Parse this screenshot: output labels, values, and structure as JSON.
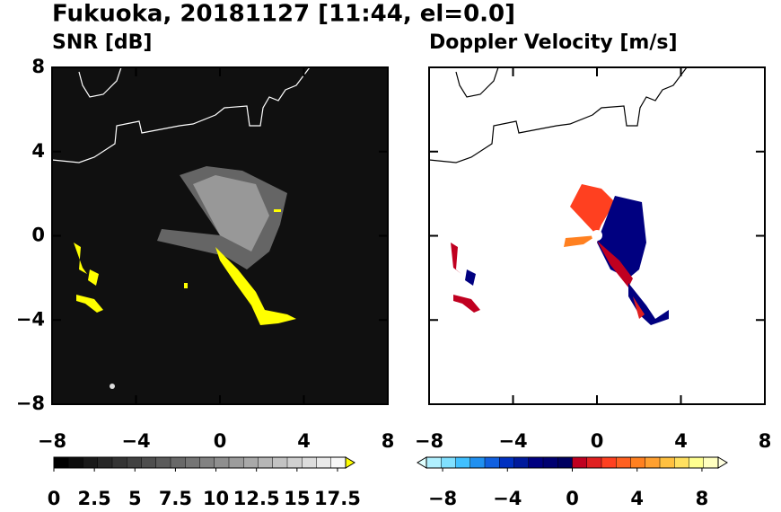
{
  "title": "Fukuoka, 20181127 [11:44, el=0.0]",
  "chart_data": [
    {
      "type": "heatmap",
      "title": "SNR [dB]",
      "background": "#101010",
      "xlim": [
        -8,
        8
      ],
      "ylim": [
        -8,
        8
      ],
      "xticks": [
        {
          "value": -8,
          "label": "−8"
        },
        {
          "value": -4,
          "label": "−4"
        },
        0,
        4,
        8
      ],
      "yticks": [
        {
          "value": -8,
          "label": "−8"
        },
        {
          "value": -4,
          "label": "−4"
        },
        0,
        4,
        8
      ],
      "colorbar": {
        "lim": [
          0,
          18
        ],
        "ticks": [
          0,
          2.5,
          5,
          7.5,
          10,
          12.5,
          15,
          17.5
        ],
        "extend": "max",
        "colors": [
          "#000000",
          "#0d0d0d",
          "#1a1a1a",
          "#272727",
          "#343434",
          "#414141",
          "#4e4e4e",
          "#5b5b5b",
          "#686868",
          "#757575",
          "#828282",
          "#8f8f8f",
          "#9c9c9c",
          "#a9a9a9",
          "#b6b6b6",
          "#c3c3c3",
          "#d0d0d0",
          "#dddddd",
          "#eaeaea",
          "#f7f7f7"
        ],
        "over": "#ffff00"
      }
    },
    {
      "type": "heatmap",
      "title": "Doppler Velocity [m/s]",
      "background": "#ffffff",
      "xlim": [
        -8,
        8
      ],
      "ylim": [
        -8,
        8
      ],
      "xticks": [
        {
          "value": -8,
          "label": "−8"
        },
        {
          "value": -4,
          "label": "−4"
        },
        0,
        4,
        8
      ],
      "yticks": [
        {
          "value": -8,
          "label": "−8"
        },
        {
          "value": -4,
          "label": "−4"
        },
        0,
        4,
        8
      ],
      "colorbar": {
        "lim": [
          -9,
          9
        ],
        "ticks": [
          {
            "value": -8,
            "label": "−8"
          },
          {
            "value": -4,
            "label": "−4"
          },
          0,
          4,
          8
        ],
        "extend": "both",
        "colors": [
          "#b0f0ff",
          "#80e0ff",
          "#40c0ff",
          "#2090f0",
          "#1060e0",
          "#0030c0",
          "#001a9c",
          "#000080",
          "#000070",
          "#000060",
          "#c00020",
          "#e02020",
          "#ff4020",
          "#ff6020",
          "#ff8020",
          "#ffa030",
          "#ffc040",
          "#ffe060",
          "#ffff90",
          "#ffffc0"
        ],
        "under": "#e0ffff",
        "over": "#ffffe0"
      }
    }
  ]
}
